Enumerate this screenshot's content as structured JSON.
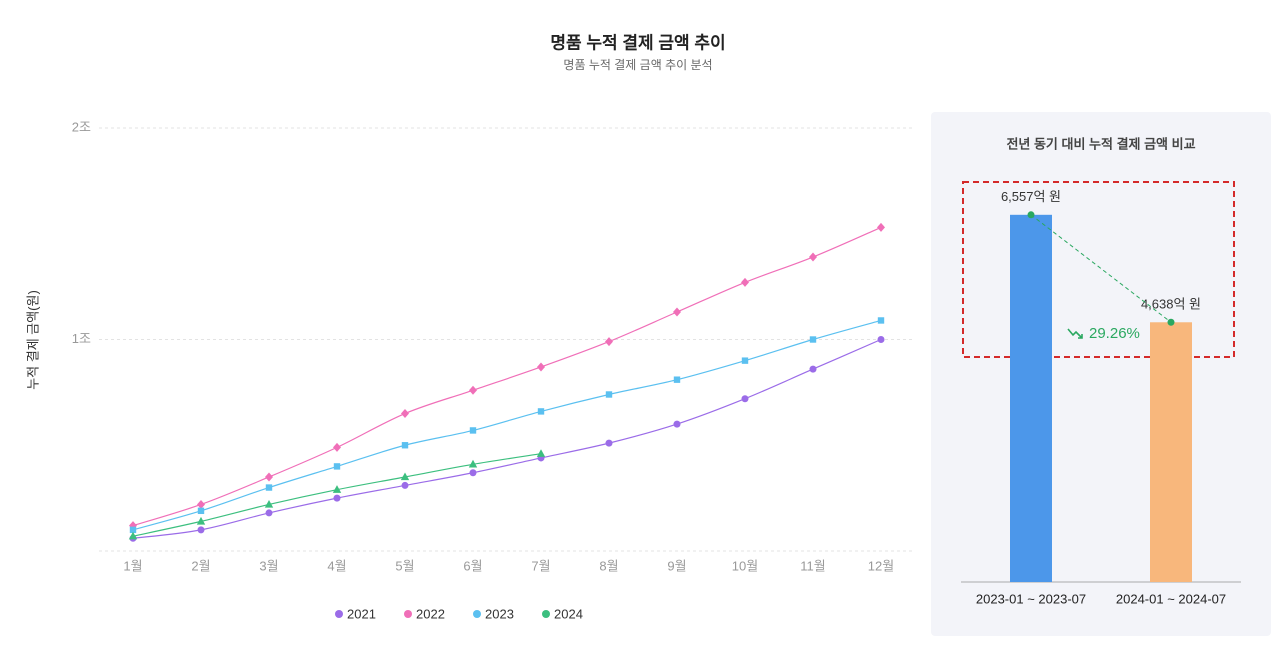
{
  "chart_data": [
    {
      "type": "line",
      "title": "명품 누적 결제 금액 추이",
      "subtitle": "명품 누적 결제 금액 추이 분석",
      "y_label": "누적 결제 금액(원)",
      "categories": [
        "1월",
        "2월",
        "3월",
        "4월",
        "5월",
        "6월",
        "7월",
        "8월",
        "9월",
        "10월",
        "11월",
        "12월"
      ],
      "series": [
        {
          "name": "2021",
          "color": "#9b6ce8",
          "marker": "circle",
          "values": [
            0.06,
            0.1,
            0.18,
            0.25,
            0.31,
            0.37,
            0.44,
            0.51,
            0.6,
            0.72,
            0.86,
            1.0
          ]
        },
        {
          "name": "2022",
          "color": "#f06fb8",
          "marker": "diamond",
          "values": [
            0.12,
            0.22,
            0.35,
            0.49,
            0.65,
            0.76,
            0.87,
            0.99,
            1.13,
            1.27,
            1.39,
            1.53
          ]
        },
        {
          "name": "2023",
          "color": "#5bc0f0",
          "marker": "square",
          "values": [
            0.1,
            0.19,
            0.3,
            0.4,
            0.5,
            0.57,
            0.66,
            0.74,
            0.81,
            0.9,
            1.0,
            1.09
          ]
        },
        {
          "name": "2024",
          "color": "#3cbf7f",
          "marker": "triangle",
          "values": [
            0.07,
            0.14,
            0.22,
            0.29,
            0.35,
            0.41,
            0.46,
            null,
            null,
            null,
            null,
            null
          ]
        }
      ],
      "ylim": [
        0,
        2
      ],
      "yticks": [
        {
          "value": 1,
          "label": "1조"
        },
        {
          "value": 2,
          "label": "2조"
        }
      ],
      "grid": true,
      "legend": "bottom"
    },
    {
      "type": "bar",
      "title": "전년 동기 대비 누적 결제 금액 비교",
      "categories": [
        "2023-01 ~ 2023-07",
        "2024-01 ~ 2024-07"
      ],
      "values": [
        6557,
        4638
      ],
      "value_labels": [
        "6,557억 원",
        "4,638억 원"
      ],
      "colors": [
        "#4c97ea",
        "#f8b77c"
      ],
      "ylim": [
        0,
        8000
      ],
      "annotation": "29.26%"
    }
  ]
}
